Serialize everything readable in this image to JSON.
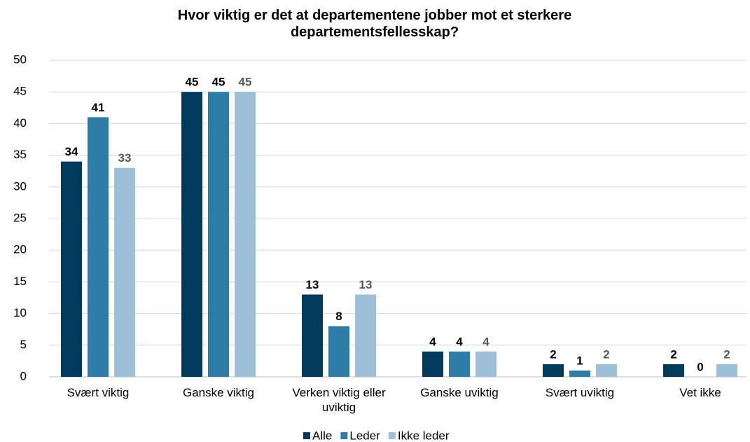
{
  "chart_data": {
    "type": "bar",
    "title": "Hvor viktig er det at departementene jobber mot et sterkere departementsfellesskap?",
    "categories": [
      "Svært viktig",
      "Ganske viktig",
      "Verken viktig eller uviktig",
      "Ganske uviktig",
      "Svært uviktig",
      "Vet ikke"
    ],
    "series": [
      {
        "name": "Alle",
        "color": "#003a5c",
        "values": [
          34,
          45,
          13,
          4,
          2,
          2
        ]
      },
      {
        "name": "Leder",
        "color": "#2e7ca8",
        "values": [
          41,
          45,
          8,
          4,
          1,
          0
        ]
      },
      {
        "name": "Ikke leder",
        "color": "#9dc0d8",
        "values": [
          33,
          45,
          13,
          4,
          2,
          2
        ]
      }
    ],
    "ylim": [
      0,
      50
    ],
    "yticks": [
      0,
      5,
      10,
      15,
      20,
      25,
      30,
      35,
      40,
      45,
      50
    ],
    "grid": true,
    "legend": "bottom"
  }
}
